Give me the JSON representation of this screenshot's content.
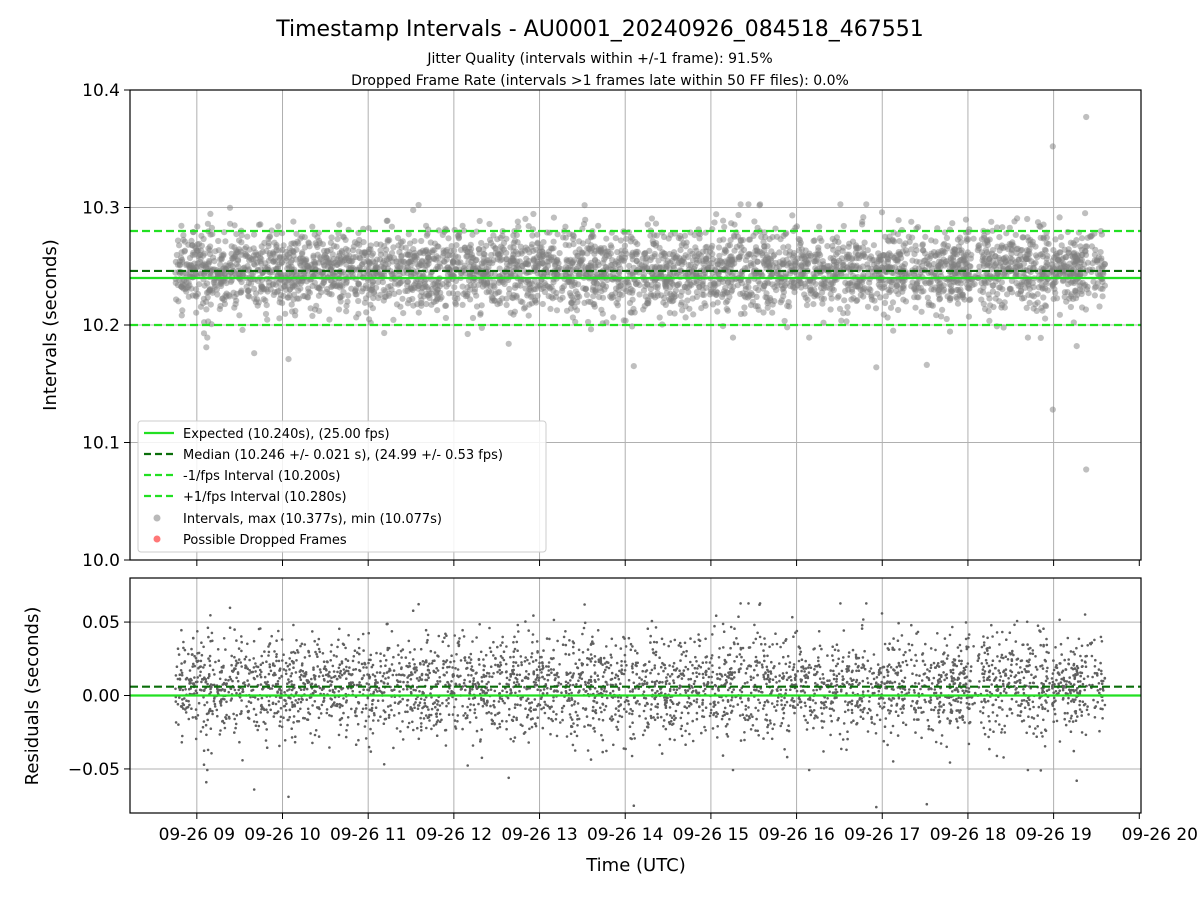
{
  "chart_data": [
    {
      "type": "scatter",
      "title": "Timestamp Intervals - AU0001_20240926_084518_467551",
      "subtitle_lines": [
        "Jitter Quality (intervals within +/-1 frame): 91.5%",
        "Dropped Frame Rate (intervals >1 frames late within 50 FF files): 0.0%"
      ],
      "ylabel": "Intervals (seconds)",
      "ylim": [
        10.0,
        10.4
      ],
      "y_ticks": [
        "10.0",
        "10.1",
        "10.2",
        "10.3",
        "10.4"
      ],
      "x_range_hours": [
        8.22,
        20.02
      ],
      "grid": true,
      "legend_position": "lower-left",
      "reference_lines": [
        {
          "name": "Expected (10.240s), (25.00 fps)",
          "value": 10.24,
          "color": "#22e022",
          "style": "solid"
        },
        {
          "name": "Median (10.246 +/- 0.021 s), (24.99 +/- 0.53 fps)",
          "value": 10.246,
          "color": "#0a6e0a",
          "style": "dashed"
        },
        {
          "name": "-1/fps Interval (10.200s)",
          "value": 10.2,
          "color": "#22e022",
          "style": "dashed"
        },
        {
          "name": "+1/fps Interval (10.280s)",
          "value": 10.28,
          "color": "#22e022",
          "style": "dashed"
        }
      ],
      "series": [
        {
          "name": "Intervals, max (10.377s), min (10.077s)",
          "color": "#808080",
          "center": 10.246,
          "spread": 0.021,
          "x_start_hours": 8.75,
          "x_end_hours": 19.6,
          "count": 3800,
          "outliers": [
            {
              "x": 19.38,
              "y": 10.377
            },
            {
              "x": 19.38,
              "y": 10.077
            },
            {
              "x": 18.99,
              "y": 10.352
            },
            {
              "x": 18.99,
              "y": 10.128
            },
            {
              "x": 14.1,
              "y": 10.165
            },
            {
              "x": 16.93,
              "y": 10.164
            },
            {
              "x": 17.52,
              "y": 10.166
            },
            {
              "x": 10.07,
              "y": 10.171
            },
            {
              "x": 9.67,
              "y": 10.176
            },
            {
              "x": 19.27,
              "y": 10.182
            },
            {
              "x": 9.11,
              "y": 10.181
            },
            {
              "x": 12.64,
              "y": 10.184
            },
            {
              "x": 18.85,
              "y": 10.189
            }
          ]
        },
        {
          "name": "Possible Dropped Frames",
          "color": "#ff5555",
          "values": []
        }
      ]
    },
    {
      "type": "scatter",
      "ylabel": "Residuals (seconds)",
      "xlabel": "Time (UTC)",
      "ylim": [
        -0.08,
        0.08
      ],
      "y_ticks": [
        "−0.05",
        "0.00",
        "0.05"
      ],
      "y_tick_values": [
        -0.05,
        0.0,
        0.05
      ],
      "x_tick_labels": [
        "09-26 09",
        "09-26 10",
        "09-26 11",
        "09-26 12",
        "09-26 13",
        "09-26 14",
        "09-26 15",
        "09-26 16",
        "09-26 17",
        "09-26 18",
        "09-26 19",
        "09-26 20"
      ],
      "x_tick_hours": [
        9,
        10,
        11,
        12,
        13,
        14,
        15,
        16,
        17,
        18,
        19,
        20
      ],
      "grid": true,
      "reference_lines": [
        {
          "value": 0.0,
          "color": "#22e022",
          "style": "solid"
        },
        {
          "value": 0.006,
          "color": "#0a6e0a",
          "style": "dashed"
        }
      ],
      "series": [
        {
          "color": "#606060",
          "note_derived_from": "intervals minus 10.240"
        }
      ]
    }
  ]
}
